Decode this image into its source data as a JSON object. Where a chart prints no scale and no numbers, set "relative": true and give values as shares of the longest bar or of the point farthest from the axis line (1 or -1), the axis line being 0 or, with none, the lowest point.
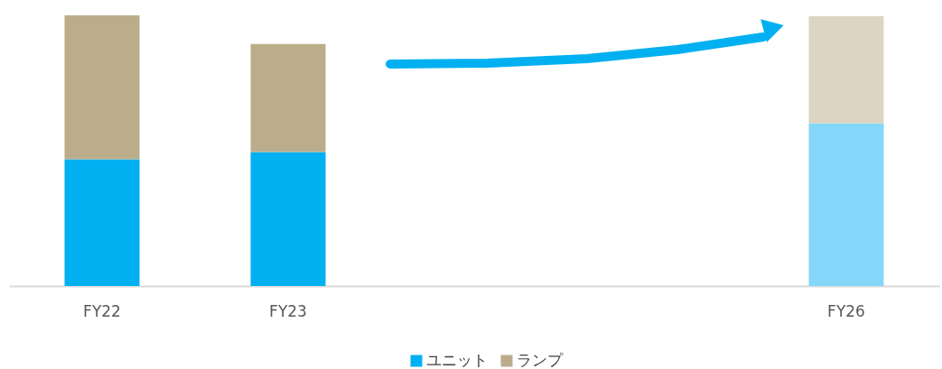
{
  "chart_data": {
    "type": "bar",
    "stacked": true,
    "relative": true,
    "categories": [
      "FY22",
      "FY23",
      null,
      null,
      "FY26"
    ],
    "series": [
      {
        "name": "ユニット",
        "color": "#00b0f0",
        "colors": [
          "#00b0f0",
          "#00b0f0",
          null,
          null,
          "#85d7fa"
        ],
        "values": [
          0.468,
          0.495,
          null,
          null,
          0.601
        ]
      },
      {
        "name": "ランプ",
        "color": "#bbad8c",
        "colors": [
          "#bbad8c",
          "#bbad8c",
          null,
          null,
          "#ddd5c3"
        ],
        "values": [
          0.532,
          0.399,
          null,
          null,
          0.396
        ]
      }
    ],
    "legend": "bottom",
    "grid": false
  }
}
